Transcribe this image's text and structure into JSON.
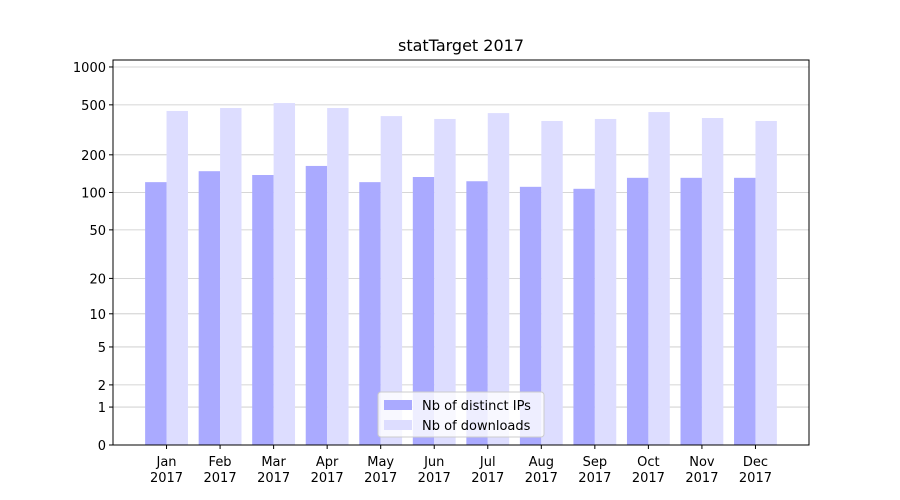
{
  "chart_data": {
    "type": "bar",
    "title": "statTarget 2017",
    "categories": [
      [
        "Jan",
        "2017"
      ],
      [
        "Feb",
        "2017"
      ],
      [
        "Mar",
        "2017"
      ],
      [
        "Apr",
        "2017"
      ],
      [
        "May",
        "2017"
      ],
      [
        "Jun",
        "2017"
      ],
      [
        "Jul",
        "2017"
      ],
      [
        "Aug",
        "2017"
      ],
      [
        "Sep",
        "2017"
      ],
      [
        "Oct",
        "2017"
      ],
      [
        "Nov",
        "2017"
      ],
      [
        "Dec",
        "2017"
      ]
    ],
    "series": [
      {
        "name": "Nb of distinct IPs",
        "color": "#aaaaff",
        "values": [
          121,
          148,
          138,
          163,
          121,
          133,
          123,
          111,
          107,
          131,
          131,
          131
        ]
      },
      {
        "name": "Nb of downloads",
        "color": "#ddddff",
        "values": [
          447,
          472,
          517,
          472,
          407,
          386,
          430,
          372,
          386,
          438,
          393,
          372
        ]
      }
    ],
    "yscale": "log1p",
    "ylim": [
      0,
      1136
    ],
    "yticks": [
      0,
      1,
      2,
      5,
      10,
      20,
      50,
      100,
      200,
      500,
      1000
    ],
    "grid": true,
    "legend": "lower center"
  }
}
